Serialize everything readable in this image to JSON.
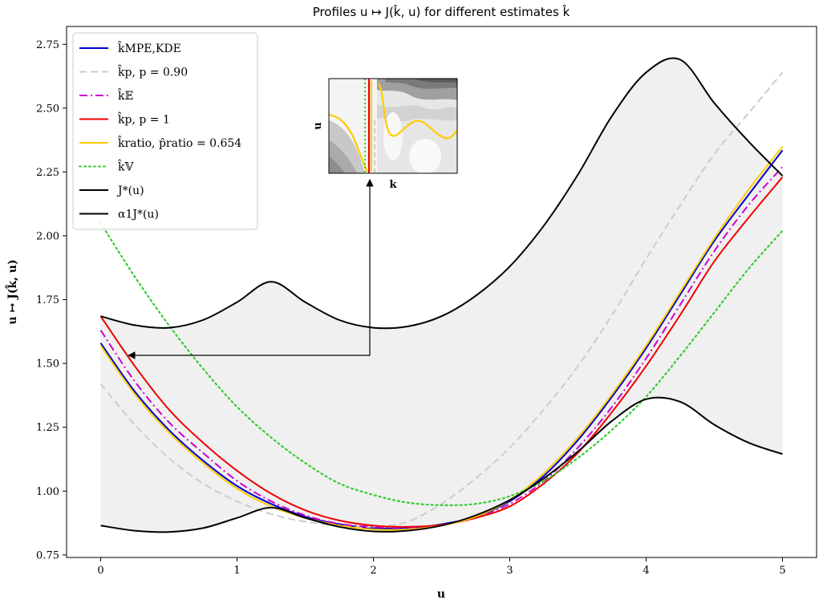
{
  "chart_data": {
    "type": "line",
    "title": "Profiles u ↦ J(k̂, u) for different estimates k̂",
    "xlabel": "u",
    "ylabel": "u ↦ J(k̂, u)",
    "xlim": [
      -0.25,
      5.25
    ],
    "ylim": [
      0.74,
      2.82
    ],
    "xticks": [
      0,
      1,
      2,
      3,
      4,
      5
    ],
    "xtick_labels": [
      "0",
      "1",
      "2",
      "3",
      "4",
      "5"
    ],
    "yticks": [
      0.75,
      1.0,
      1.25,
      1.5,
      1.75,
      2.0,
      2.25,
      2.5,
      2.75
    ],
    "ytick_labels": [
      "0.75",
      "1.00",
      "1.25",
      "1.50",
      "1.75",
      "2.00",
      "2.25",
      "2.50",
      "2.75"
    ],
    "grid": false,
    "legend_position": "top-left",
    "x": [
      0,
      0.25,
      0.5,
      0.75,
      1.0,
      1.25,
      1.5,
      1.75,
      2.0,
      2.25,
      2.5,
      2.75,
      3.0,
      3.25,
      3.5,
      3.75,
      4.0,
      4.25,
      4.5,
      4.75,
      5.0
    ],
    "series": [
      {
        "name": "k̂MPE,KDE",
        "color": "#0000cc",
        "dash": "solid",
        "values": [
          1.58,
          1.39,
          1.24,
          1.12,
          1.02,
          0.95,
          0.9,
          0.87,
          0.855,
          0.855,
          0.87,
          0.9,
          0.96,
          1.06,
          1.2,
          1.37,
          1.56,
          1.77,
          1.98,
          2.16,
          2.335
        ]
      },
      {
        "name": "k̂p, p = 0.90",
        "color": "#cccccc",
        "dash": "dashed",
        "values": [
          1.42,
          1.26,
          1.13,
          1.03,
          0.96,
          0.91,
          0.88,
          0.865,
          0.86,
          0.88,
          0.95,
          1.05,
          1.17,
          1.32,
          1.49,
          1.69,
          1.91,
          2.12,
          2.32,
          2.48,
          2.64
        ]
      },
      {
        "name": "k̂𝔼",
        "color": "#cc00cc",
        "dash": "dashdot",
        "values": [
          1.63,
          1.43,
          1.27,
          1.15,
          1.04,
          0.96,
          0.905,
          0.872,
          0.86,
          0.857,
          0.868,
          0.895,
          0.95,
          1.04,
          1.17,
          1.33,
          1.52,
          1.73,
          1.94,
          2.12,
          2.27
        ]
      },
      {
        "name": "k̂p, p = 1",
        "color": "#ee0000",
        "dash": "solid",
        "values": [
          1.685,
          1.49,
          1.32,
          1.19,
          1.08,
          0.99,
          0.925,
          0.885,
          0.865,
          0.86,
          0.868,
          0.895,
          0.94,
          1.03,
          1.15,
          1.31,
          1.49,
          1.69,
          1.9,
          2.07,
          2.23
        ]
      },
      {
        "name": "k̂ratio, p̂ratio = 0.654",
        "color": "#ffcc00",
        "dash": "solid",
        "values": [
          1.57,
          1.38,
          1.23,
          1.11,
          1.01,
          0.94,
          0.895,
          0.865,
          0.85,
          0.85,
          0.865,
          0.9,
          0.965,
          1.07,
          1.21,
          1.38,
          1.57,
          1.78,
          1.99,
          2.18,
          2.35
        ]
      },
      {
        "name": "k̂𝕍",
        "color": "#33cc33",
        "dash": "dotted",
        "values": [
          2.05,
          1.84,
          1.65,
          1.48,
          1.33,
          1.21,
          1.11,
          1.03,
          0.985,
          0.955,
          0.945,
          0.95,
          0.98,
          1.04,
          1.13,
          1.24,
          1.37,
          1.53,
          1.7,
          1.87,
          2.02
        ]
      },
      {
        "name": "J*(u)",
        "color": "#000000",
        "dash": "solid",
        "values": [
          0.865,
          0.845,
          0.84,
          0.855,
          0.895,
          0.935,
          0.895,
          0.86,
          0.842,
          0.845,
          0.865,
          0.905,
          0.965,
          1.05,
          1.155,
          1.275,
          1.36,
          1.35,
          1.26,
          1.19,
          1.145
        ]
      },
      {
        "name": "α1J*(u)",
        "color": "#000000",
        "dash": "solid",
        "values": [
          1.685,
          1.65,
          1.64,
          1.67,
          1.74,
          1.82,
          1.74,
          1.67,
          1.64,
          1.645,
          1.685,
          1.765,
          1.88,
          2.04,
          2.24,
          2.47,
          2.64,
          2.69,
          2.52,
          2.37,
          2.235
        ]
      }
    ],
    "fill_between": {
      "lower": "J*(u)",
      "upper": "α1J*(u)",
      "color": "#f0f0f0"
    },
    "annotation": {
      "from_x": 0.2,
      "from_y": 1.535,
      "note": "arrow connecting inset to profile curves"
    },
    "inset": {
      "type": "heatmap",
      "xlabel": "k",
      "ylabel": "u"
    }
  }
}
